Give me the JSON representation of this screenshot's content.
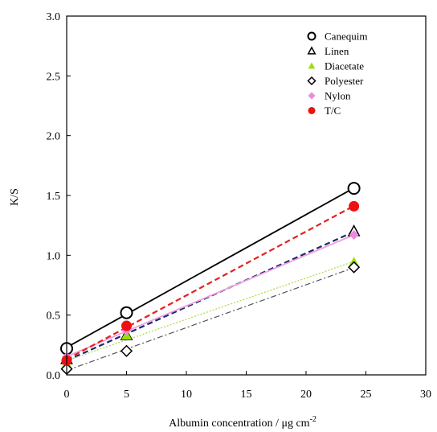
{
  "chart_data": {
    "type": "scatter",
    "xlabel": "Albumin concentration / μg cm",
    "xlabel_sup": "-2",
    "ylabel": "K/S",
    "xlim": [
      0,
      30
    ],
    "ylim": [
      0,
      3.0
    ],
    "xticks": [
      "0",
      "5",
      "10",
      "15",
      "20",
      "25",
      "30"
    ],
    "yticks": [
      "0.0",
      "0.5",
      "1.0",
      "1.5",
      "2.0",
      "2.5",
      "3.0"
    ],
    "grid": false,
    "legend_position": "top-right",
    "series": [
      {
        "name": "Canequim",
        "marker": "circle-open",
        "color": "#000000",
        "line_style": "solid",
        "line_color": "#000000",
        "x": [
          0,
          5,
          24
        ],
        "y": [
          0.22,
          0.52,
          1.56
        ]
      },
      {
        "name": "Linen",
        "marker": "triangle-open",
        "color": "#000000",
        "line_style": "dashed",
        "line_color": "#1a2a6c",
        "x": [
          0,
          5,
          24
        ],
        "y": [
          0.13,
          0.33,
          1.2
        ]
      },
      {
        "name": "Diacetate",
        "marker": "triangle-filled",
        "color": "#99e000",
        "line_style": "dotted",
        "line_color": "#a8d84a",
        "x": [
          0,
          5,
          24
        ],
        "y": [
          0.09,
          0.33,
          0.94
        ]
      },
      {
        "name": "Polyester",
        "marker": "diamond-open",
        "color": "#000000",
        "line_style": "dashdot",
        "line_color": "#555555",
        "x": [
          0,
          5,
          24
        ],
        "y": [
          0.05,
          0.2,
          0.9
        ]
      },
      {
        "name": "Nylon",
        "marker": "diamond-filled",
        "color": "#ee88dd",
        "line_style": "solid",
        "line_color": "#f0a0e0",
        "x": [
          0,
          5,
          24
        ],
        "y": [
          0.15,
          0.37,
          1.17
        ]
      },
      {
        "name": "T/C",
        "marker": "circle-filled",
        "color": "#ee1111",
        "line_style": "dashed",
        "line_color": "#e62020",
        "x": [
          0,
          5,
          24
        ],
        "y": [
          0.12,
          0.41,
          1.41
        ]
      }
    ]
  }
}
